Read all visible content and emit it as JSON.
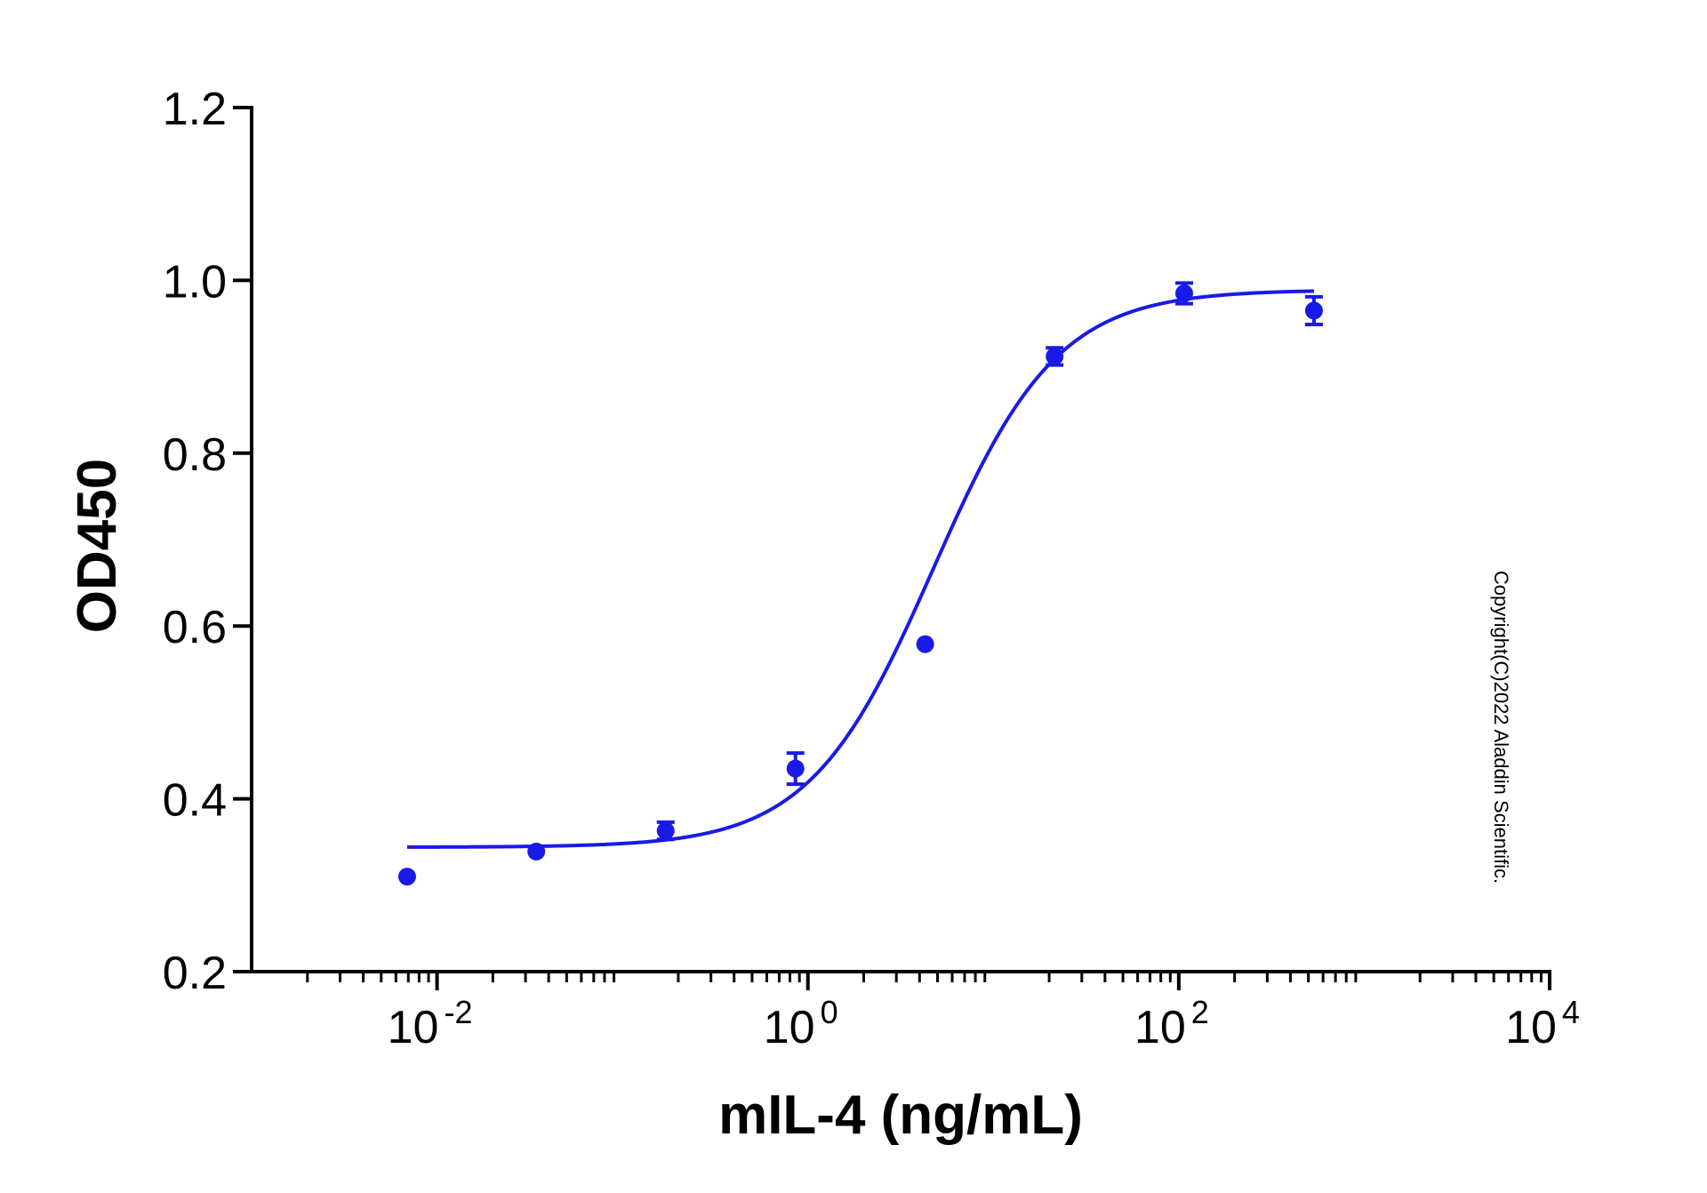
{
  "chart_data": {
    "type": "scatter",
    "xlabel": "mIL-4 (ng/mL)",
    "ylabel": "OD450",
    "x_scale": "log",
    "xlim": [
      0.001,
      10000
    ],
    "ylim": [
      0.2,
      1.2
    ],
    "x_major_ticks": [
      {
        "value": 0.01,
        "base": "10",
        "exp": "-2"
      },
      {
        "value": 1,
        "base": "10",
        "exp": "0"
      },
      {
        "value": 100,
        "base": "10",
        "exp": "2"
      },
      {
        "value": 10000,
        "base": "10",
        "exp": "4"
      }
    ],
    "y_ticks": [
      {
        "value": 0.2,
        "label": "0.2"
      },
      {
        "value": 0.4,
        "label": "0.4"
      },
      {
        "value": 0.6,
        "label": "0.6"
      },
      {
        "value": 0.8,
        "label": "0.8"
      },
      {
        "value": 1.0,
        "label": "1.0"
      },
      {
        "value": 1.2,
        "label": "1.2"
      }
    ],
    "grid": false,
    "color": "#1a1ae6",
    "points": [
      {
        "x": 0.0069,
        "y": 0.31,
        "err": 0.0
      },
      {
        "x": 0.0343,
        "y": 0.339,
        "err": 0.0
      },
      {
        "x": 0.171,
        "y": 0.363,
        "err": 0.01
      },
      {
        "x": 0.857,
        "y": 0.435,
        "err": 0.018
      },
      {
        "x": 4.29,
        "y": 0.579,
        "err": 0.0
      },
      {
        "x": 21.4,
        "y": 0.912,
        "err": 0.01
      },
      {
        "x": 107,
        "y": 0.985,
        "err": 0.012
      },
      {
        "x": 536,
        "y": 0.965,
        "err": 0.016
      }
    ],
    "fit": {
      "model": "four-parameter logistic",
      "bottom": 0.344,
      "top": 0.989,
      "ec50": 4.75,
      "hill": 1.3,
      "x_range": [
        0.0069,
        536
      ]
    }
  },
  "watermark": "Copyright(C)2022 Aladdin Scientific."
}
